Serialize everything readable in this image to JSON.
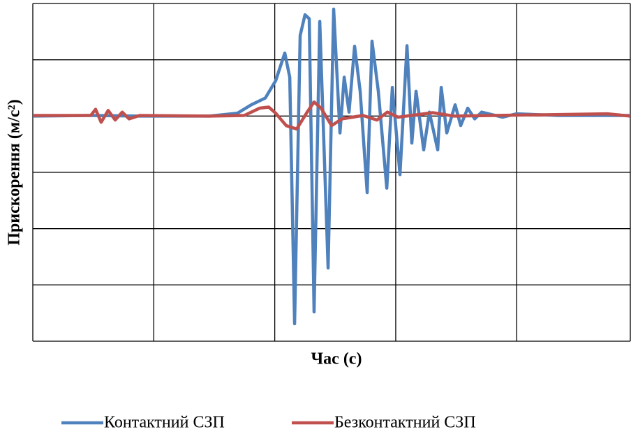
{
  "chart_data": {
    "type": "line",
    "x_label": "Час (с)",
    "y_label": "Прискорення (м/с²)",
    "xlim": [
      0,
      4.939
    ],
    "ylim": [
      -4,
      2
    ],
    "xticks": [
      0,
      1,
      2,
      3,
      4
    ],
    "yticks": [
      -4,
      -3,
      -2,
      -1,
      0,
      1,
      2
    ],
    "grid": true,
    "tick_labels": false,
    "legend": "bottom",
    "series": [
      {
        "name": "Контактний СЗП",
        "color": "#4f81bd",
        "x": [
          0,
          0.479,
          0.883,
          1.46,
          1.691,
          1.806,
          1.922,
          2.008,
          2.083,
          2.124,
          2.164,
          2.21,
          2.25,
          2.285,
          2.325,
          2.372,
          2.441,
          2.487,
          2.539,
          2.574,
          2.614,
          2.66,
          2.706,
          2.764,
          2.804,
          2.856,
          2.926,
          2.972,
          3.035,
          3.093,
          3.133,
          3.168,
          3.231,
          3.278,
          3.347,
          3.376,
          3.422,
          3.491,
          3.537,
          3.595,
          3.653,
          3.71,
          3.883,
          3.999,
          4.345,
          4.939
        ],
        "values": [
          0,
          0.01,
          0,
          0,
          0.05,
          0.2,
          0.32,
          0.63,
          1.12,
          0.69,
          -3.69,
          1.43,
          1.8,
          1.73,
          -3.48,
          1.68,
          -2.7,
          1.9,
          -0.3,
          0.69,
          0.07,
          1.24,
          0.44,
          -1.36,
          1.33,
          0.44,
          -1.28,
          0.51,
          -1.04,
          1.25,
          -0.48,
          0.44,
          -0.6,
          0.07,
          -0.6,
          0.51,
          -0.3,
          0.2,
          -0.17,
          0.14,
          -0.05,
          0.07,
          -0.02,
          0.04,
          0.01,
          0.01
        ]
      },
      {
        "name": "Безконтактний СЗП",
        "color": "#c0504d",
        "x": [
          0,
          0.479,
          0.519,
          0.565,
          0.623,
          0.681,
          0.739,
          0.796,
          0.883,
          1.46,
          1.748,
          1.875,
          1.95,
          2.008,
          2.095,
          2.181,
          2.268,
          2.325,
          2.383,
          2.47,
          2.556,
          2.729,
          2.845,
          2.931,
          3.018,
          3.306,
          3.48,
          4.749,
          4.939
        ],
        "values": [
          0.01,
          0.01,
          0.12,
          -0.11,
          0.1,
          -0.07,
          0.07,
          -0.05,
          0.01,
          0,
          0.01,
          0.14,
          0.16,
          0.05,
          -0.17,
          -0.23,
          0.07,
          0.25,
          0.14,
          -0.17,
          -0.05,
          0.01,
          -0.07,
          0.07,
          -0.02,
          0.06,
          0,
          0.04,
          0
        ]
      }
    ]
  }
}
